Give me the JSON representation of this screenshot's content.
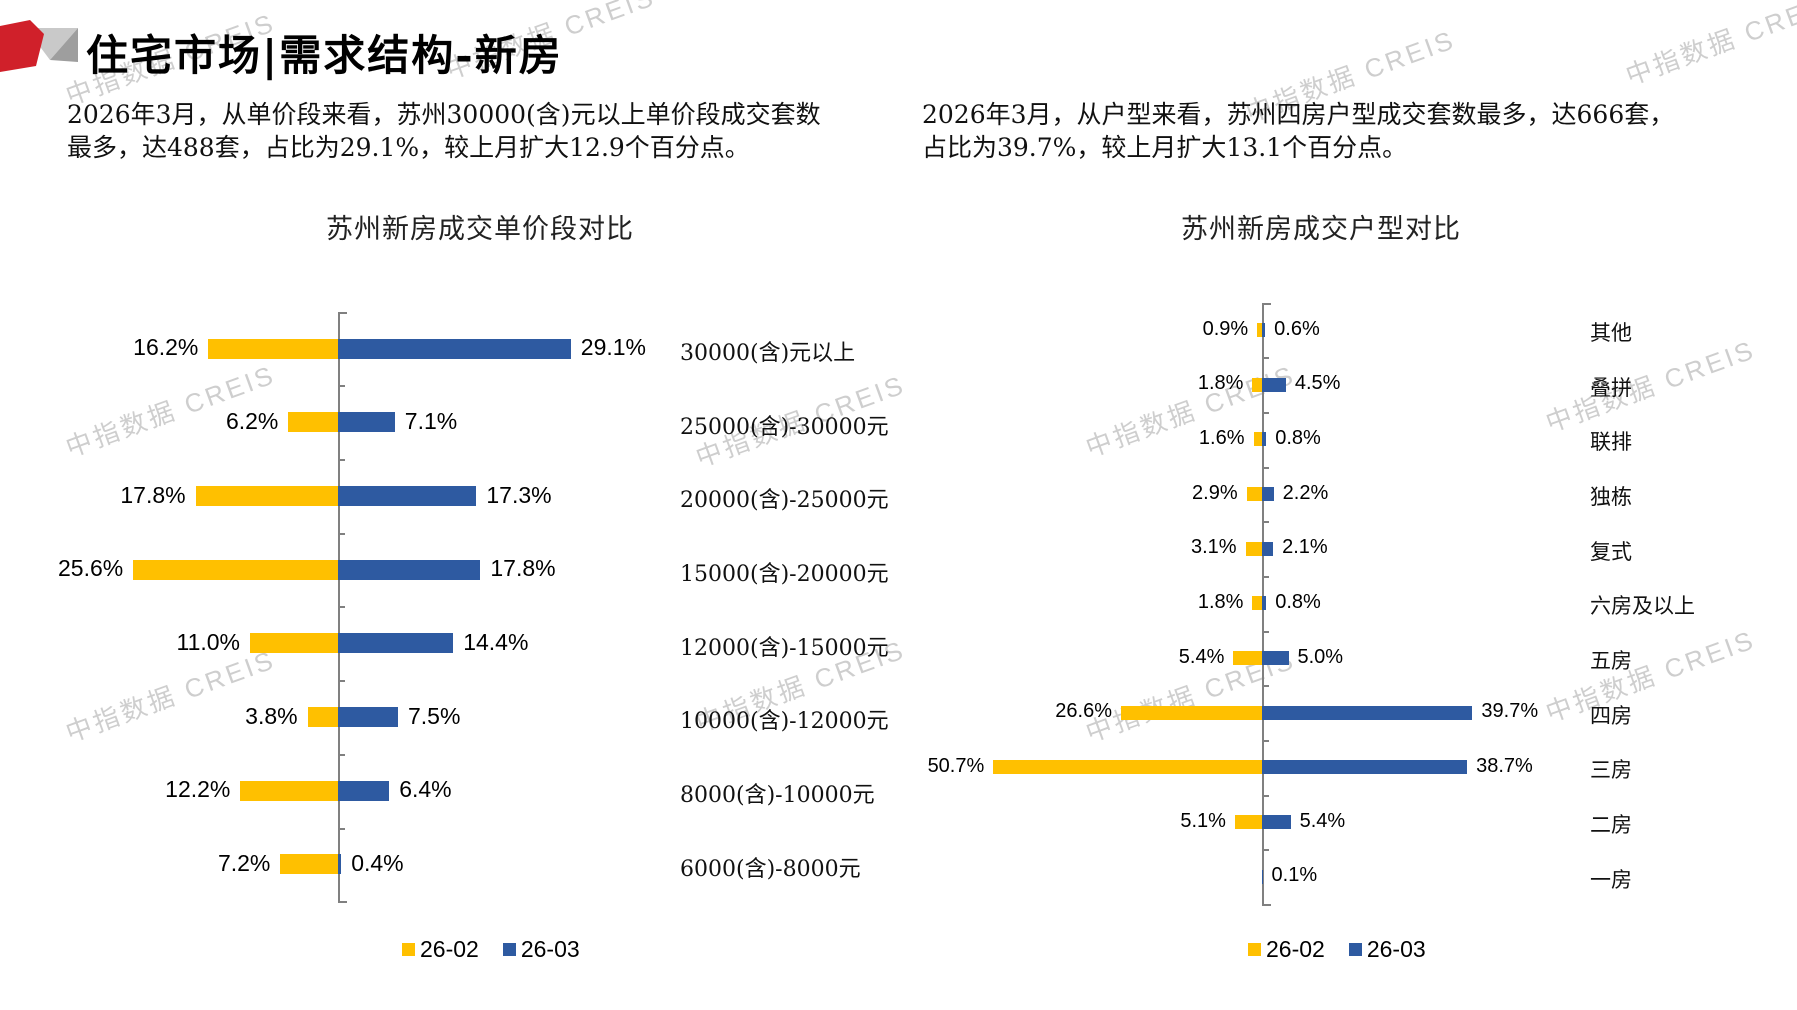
{
  "header": {
    "title": "住宅市场|需求结构-新房"
  },
  "paragraphs": {
    "left": "2026年3月，从单价段来看，苏州30000(含)元以上单价段成交套数\n最多，达488套，占比为29.1%，较上月扩大12.9个百分点。",
    "right": "2026年3月，从户型来看，苏州四房户型成交套数最多，达666套，\n占比为39.7%，较上月扩大13.1个百分点。"
  },
  "watermark": {
    "text": "中指数据 CREIS"
  },
  "colors": {
    "series_26_02": "#FFC000",
    "series_26_03": "#2E5AA1",
    "axis": "#808080",
    "logo_red": "#D0202A",
    "logo_gray_light": "#C9C9C9",
    "logo_gray_dark": "#9E9E9E"
  },
  "legend": {
    "items": [
      {
        "label": "26-02",
        "color": "#FFC000"
      },
      {
        "label": "26-03",
        "color": "#2E5AA1"
      }
    ]
  },
  "chart_data": [
    {
      "type": "bar",
      "orientation": "horizontal-butterfly",
      "title": "苏州新房成交单价段对比",
      "value_suffix": "%",
      "categories": [
        "30000(含)元以上",
        "25000(含)-30000元",
        "20000(含)-25000元",
        "15000(含)-20000元",
        "12000(含)-15000元",
        "10000(含)-12000元",
        "8000(含)-10000元",
        "6000(含)-8000元"
      ],
      "series": [
        {
          "name": "26-02",
          "side": "left",
          "values": [
            16.2,
            6.2,
            17.8,
            25.6,
            11.0,
            3.8,
            12.2,
            7.2
          ]
        },
        {
          "name": "26-03",
          "side": "right",
          "values": [
            29.1,
            7.1,
            17.3,
            17.8,
            14.4,
            7.5,
            6.4,
            0.4
          ]
        }
      ],
      "legend_position": "bottom",
      "grid": false
    },
    {
      "type": "bar",
      "orientation": "horizontal-butterfly",
      "title": "苏州新房成交户型对比",
      "value_suffix": "%",
      "categories": [
        "其他",
        "叠拼",
        "联排",
        "独栋",
        "复式",
        "六房及以上",
        "五房",
        "四房",
        "三房",
        "二房",
        "一房"
      ],
      "series": [
        {
          "name": "26-02",
          "side": "left",
          "values": [
            0.9,
            1.8,
            1.6,
            2.9,
            3.1,
            1.8,
            5.4,
            26.6,
            50.7,
            5.1,
            null
          ]
        },
        {
          "name": "26-03",
          "side": "right",
          "values": [
            0.6,
            4.5,
            0.8,
            2.2,
            2.1,
            0.8,
            5.0,
            39.7,
            38.7,
            5.4,
            0.1
          ]
        }
      ],
      "legend_position": "bottom",
      "grid": false
    }
  ]
}
